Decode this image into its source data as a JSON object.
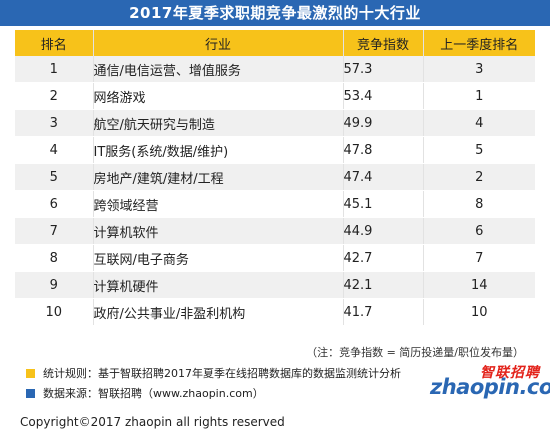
{
  "title": "2017年夏季求职期竞争最激烈的十大行业",
  "headers": [
    "排名",
    "行业",
    "竞争指数",
    "上一季度排名"
  ],
  "rows": [
    {
      "rank": "1",
      "industry": "通信/电信运营、增值服务",
      "index": "57.3",
      "prev": "3"
    },
    {
      "rank": "2",
      "industry": "网络游戏",
      "index": "53.4",
      "prev": "1"
    },
    {
      "rank": "3",
      "industry": "航空/航天研究与制造",
      "index": "49.9",
      "prev": "4"
    },
    {
      "rank": "4",
      "industry": "IT服务(系统/数据/维护)",
      "index": "47.8",
      "prev": "5"
    },
    {
      "rank": "5",
      "industry": "房地产/建筑/建材/工程",
      "index": "47.4",
      "prev": "2"
    },
    {
      "rank": "6",
      "industry": "跨领域经营",
      "index": "45.1",
      "prev": "8"
    },
    {
      "rank": "7",
      "industry": "计算机软件",
      "index": "44.9",
      "prev": "6"
    },
    {
      "rank": "8",
      "industry": "互联网/电子商务",
      "index": "42.7",
      "prev": "7"
    },
    {
      "rank": "9",
      "industry": "计算机硬件",
      "index": "42.1",
      "prev": "14"
    },
    {
      "rank": "10",
      "industry": "政府/公共事业/非盈利机构",
      "index": "41.7",
      "prev": "10"
    }
  ],
  "note": "（注：竞争指数 = 简历投递量/职位发布量）",
  "legend": {
    "rule_text": "统计规则：基于智联招聘2017年夏季在线招聘数据库的数据监测统计分析",
    "rule_color": "#f7c21a",
    "source_text": "数据来源：智联招聘（www.zhaopin.com）",
    "source_color": "#2a67b3"
  },
  "logo": {
    "cn": "智联招聘",
    "en": "zhaopin.com"
  },
  "copyright": "Copyright©2017 zhaopin all rights reserved"
}
